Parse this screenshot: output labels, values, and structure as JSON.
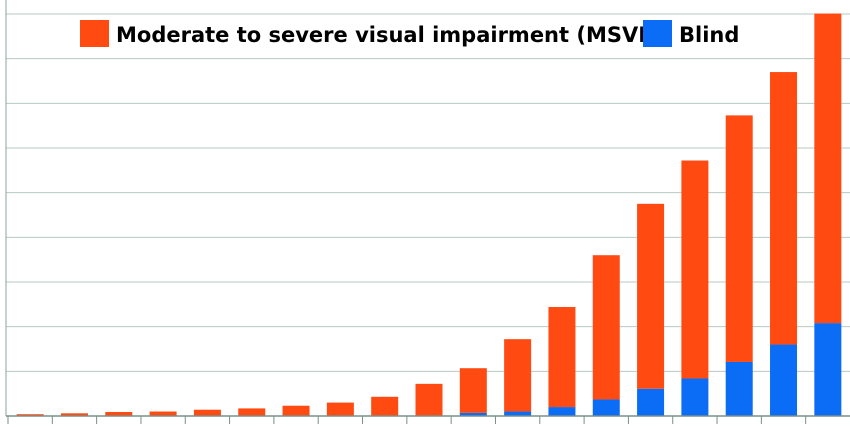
{
  "chart_data": {
    "type": "bar",
    "stacked": true,
    "title": "",
    "xlabel": "",
    "ylabel": "",
    "categories": [
      "",
      "",
      "",
      "",
      "",
      "",
      "",
      "",
      "",
      "",
      "",
      "",
      "",
      "",
      "",
      "",
      "",
      "",
      ""
    ],
    "series": [
      {
        "name": "Blind",
        "color": "#0b6cf5",
        "values": [
          0,
          0,
          0,
          0,
          0,
          0,
          0,
          0,
          0,
          0,
          0.7,
          1.0,
          2.0,
          3.7,
          6.1,
          8.4,
          12.1,
          16.0,
          20.8
        ]
      },
      {
        "name": "Moderate to severe visual impairment (MSVI)",
        "color": "#ff4a12",
        "values": [
          0.4,
          0.6,
          0.9,
          1.0,
          1.4,
          1.7,
          2.3,
          3.0,
          4.3,
          7.2,
          10.0,
          16.2,
          22.4,
          32.3,
          41.4,
          48.8,
          55.2,
          61.0,
          69.3
        ]
      }
    ],
    "ylim": [
      0,
      90
    ],
    "grid": true,
    "legend": "top",
    "legend_order": [
      "Moderate to severe visual impairment (MSVI)",
      "Blind"
    ]
  }
}
